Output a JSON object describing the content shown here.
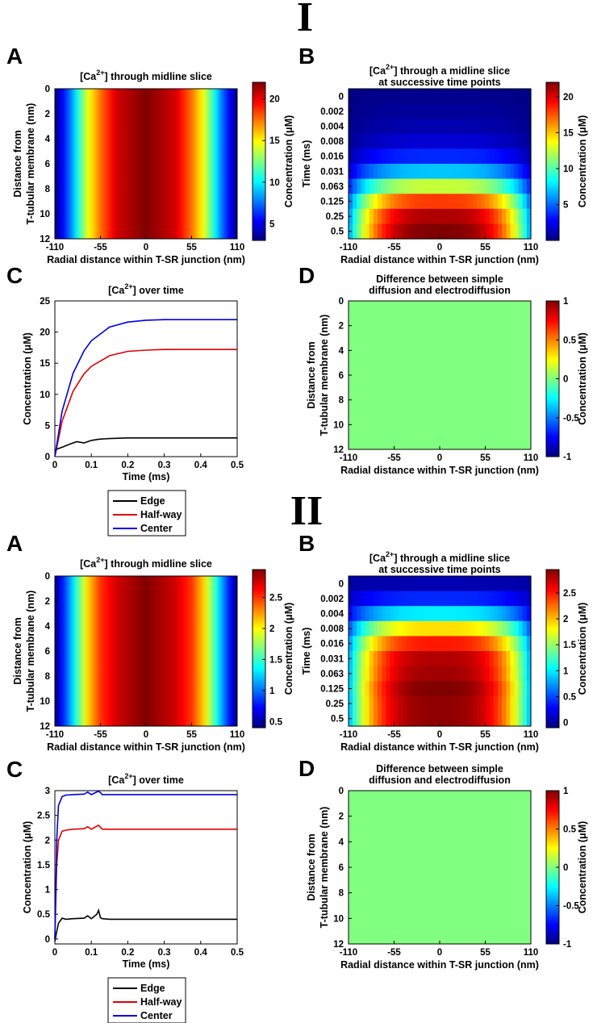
{
  "figure": {
    "sections": [
      {
        "numeral": "I",
        "panels": {
          "A": {
            "letter": "A",
            "title": "[Ca2+] through midline slice",
            "xlabel": "Radial distance within T-SR junction (nm)",
            "ylabel_line1": "Distance from",
            "ylabel_line2": "T-tubular membrane (nm)",
            "xticks": [
              "-110",
              "-55",
              "0",
              "55",
              "110"
            ],
            "yticks": [
              "0",
              "2",
              "4",
              "6",
              "8",
              "10",
              "12"
            ],
            "colorbar": {
              "label": "Concentration (μM)",
              "ticks": [
                "5",
                "10",
                "15",
                "20"
              ],
              "range": [
                3.0,
                22.0
              ]
            }
          },
          "B": {
            "letter": "B",
            "title_line1": "[Ca2+] through a midline slice",
            "title_line2": "at successive time points",
            "xlabel": "Radial distance within T-SR junction (nm)",
            "ylabel": "Time (ms)",
            "xticks": [
              "-110",
              "-55",
              "0",
              "55",
              "110"
            ],
            "yticks": [
              "0",
              "0.002",
              "0.004",
              "0.008",
              "0.016",
              "0.031",
              "0.063",
              "0.125",
              "0.25",
              "0.5"
            ],
            "colorbar": {
              "label": "Concentration (μM)",
              "ticks": [
                "5",
                "10",
                "15",
                "20"
              ],
              "range": [
                0.0,
                22.0
              ]
            }
          },
          "C": {
            "letter": "C",
            "title": "[Ca2+] over time",
            "xlabel": "Time (ms)",
            "ylabel": "Concentration (μM)",
            "xticks": [
              "0",
              "0.1",
              "0.2",
              "0.3",
              "0.4",
              "0.5"
            ],
            "yticks": [
              "0",
              "5",
              "10",
              "15",
              "20",
              "25"
            ],
            "legend": [
              "Edge",
              "Half-way",
              "Center"
            ]
          },
          "D": {
            "letter": "D",
            "title_line1": "Difference between simple",
            "title_line2": "diffusion and electrodiffusion",
            "xlabel": "Radial distance within T-SR junction (nm)",
            "ylabel_line1": "Distance from",
            "ylabel_line2": "T-tubular membrane (nm)",
            "xticks": [
              "-110",
              "-55",
              "0",
              "55",
              "110"
            ],
            "yticks": [
              "0",
              "2",
              "4",
              "6",
              "8",
              "10",
              "12"
            ],
            "colorbar": {
              "label": "Concentration (μM)",
              "ticks": [
                "1",
                "0.5",
                "0",
                "-0.5",
                "-1"
              ],
              "range": [
                -1,
                1
              ]
            }
          }
        }
      },
      {
        "numeral": "II",
        "panels": {
          "A": {
            "letter": "A",
            "title": "[Ca2+] through midline slice",
            "xlabel": "Radial distance within T-SR junction (nm)",
            "ylabel_line1": "Distance from",
            "ylabel_line2": "T-tubular membrane (nm)",
            "xticks": [
              "-110",
              "-55",
              "0",
              "55",
              "110"
            ],
            "yticks": [
              "0",
              "2",
              "4",
              "6",
              "8",
              "10",
              "12"
            ],
            "colorbar": {
              "label": "Concentration (μM)",
              "ticks": [
                "0.5",
                "1",
                "1.5",
                "2",
                "2.5"
              ],
              "range": [
                0.4,
                2.95
              ]
            }
          },
          "B": {
            "letter": "B",
            "title_line1": "[Ca2+] through a midline slice",
            "title_line2": "at successive time points",
            "xlabel": "Radial distance within T-SR junction (nm)",
            "ylabel": "Time (ms)",
            "xticks": [
              "-110",
              "-55",
              "0",
              "55",
              "110"
            ],
            "yticks": [
              "0",
              "0.002",
              "0.004",
              "0.008",
              "0.016",
              "0.031",
              "0.063",
              "0.125",
              "0.25",
              "0.5"
            ],
            "colorbar": {
              "label": "Concentration (μM)",
              "ticks": [
                "0",
                "0.5",
                "1",
                "1.5",
                "2",
                "2.5"
              ],
              "range": [
                -0.1,
                2.95
              ]
            }
          },
          "C": {
            "letter": "C",
            "title": "[Ca2+] over time",
            "xlabel": "Time (ms)",
            "ylabel": "Concentration (μM)",
            "xticks": [
              "0",
              "0.1",
              "0.2",
              "0.3",
              "0.4",
              "0.5"
            ],
            "yticks": [
              "0",
              "0.5",
              "1",
              "1.5",
              "2",
              "2.5",
              "3"
            ],
            "legend": [
              "Edge",
              "Half-way",
              "Center"
            ]
          },
          "D": {
            "letter": "D",
            "title_line1": "Difference between simple",
            "title_line2": "diffusion and electrodiffusion",
            "xlabel": "Radial distance within T-SR junction (nm)",
            "ylabel_line1": "Distance from",
            "ylabel_line2": "T-tubular membrane (nm)",
            "xticks": [
              "-110",
              "-55",
              "0",
              "55",
              "110"
            ],
            "yticks": [
              "0",
              "2",
              "4",
              "6",
              "8",
              "10",
              "12"
            ],
            "colorbar": {
              "label": "Concentration (μM)",
              "ticks": [
                "1",
                "0.5",
                "0",
                "-0.5",
                "-1"
              ],
              "range": [
                -1,
                1
              ]
            }
          }
        }
      }
    ]
  },
  "colors": {
    "edge": "#000000",
    "halfway": "#e00000",
    "center": "#0000e0",
    "zero_diff": "#80ff80"
  },
  "chart_data": [
    {
      "id": "I-A",
      "type": "heatmap",
      "title": "[Ca2+] through midline slice",
      "xlabel": "Radial distance within T-SR junction (nm)",
      "ylabel": "Distance from T-tubular membrane (nm)",
      "xlim": [
        -110,
        110
      ],
      "ylim": [
        0,
        12
      ],
      "profile_x": [
        -110,
        -90,
        -70,
        -55,
        -35,
        0,
        35,
        55,
        70,
        90,
        110
      ],
      "profile_values": [
        3.0,
        8.0,
        14.5,
        17.5,
        20.5,
        22.0,
        20.5,
        17.5,
        14.5,
        8.0,
        3.0
      ],
      "colorbar_range": [
        3.0,
        22.0
      ]
    },
    {
      "id": "I-B",
      "type": "heatmap",
      "title": "[Ca2+] through a midline slice at successive time points",
      "xlabel": "Radial distance within T-SR junction (nm)",
      "ylabel": "Time (ms)",
      "xlim": [
        -110,
        110
      ],
      "times": [
        0,
        0.002,
        0.004,
        0.008,
        0.016,
        0.031,
        0.063,
        0.125,
        0.25,
        0.5
      ],
      "center_values": [
        0.3,
        0.6,
        1.0,
        1.8,
        3.6,
        7.0,
        12.5,
        18.0,
        21.0,
        22.0
      ],
      "colorbar_range": [
        0.0,
        22.0
      ]
    },
    {
      "id": "I-C",
      "type": "line",
      "title": "[Ca2+] over time",
      "xlabel": "Time (ms)",
      "ylabel": "Concentration (μM)",
      "xlim": [
        0,
        0.5
      ],
      "ylim": [
        0,
        25
      ],
      "series": [
        {
          "name": "Edge",
          "x": [
            0,
            0.005,
            0.02,
            0.04,
            0.06,
            0.08,
            0.1,
            0.12,
            0.15,
            0.2,
            0.3,
            0.4,
            0.5
          ],
          "values": [
            0.5,
            1.2,
            1.5,
            2.0,
            2.4,
            2.2,
            2.6,
            2.8,
            2.9,
            3.0,
            3.0,
            3.0,
            3.0
          ]
        },
        {
          "name": "Half-way",
          "x": [
            0,
            0.02,
            0.05,
            0.08,
            0.1,
            0.15,
            0.2,
            0.25,
            0.3,
            0.4,
            0.5
          ],
          "values": [
            0,
            5.7,
            10.5,
            13.3,
            14.5,
            16.2,
            16.9,
            17.1,
            17.2,
            17.2,
            17.2
          ]
        },
        {
          "name": "Center",
          "x": [
            0,
            0.02,
            0.05,
            0.08,
            0.1,
            0.15,
            0.2,
            0.25,
            0.3,
            0.4,
            0.5
          ],
          "values": [
            0,
            7.3,
            13.4,
            17.0,
            18.6,
            20.8,
            21.6,
            21.9,
            22.0,
            22.0,
            22.0
          ]
        }
      ]
    },
    {
      "id": "I-D",
      "type": "heatmap",
      "title": "Difference between simple diffusion and electrodiffusion",
      "xlabel": "Radial distance within T-SR junction (nm)",
      "ylabel": "Distance from T-tubular membrane (nm)",
      "xlim": [
        -110,
        110
      ],
      "ylim": [
        0,
        12
      ],
      "value": 0,
      "colorbar_range": [
        -1,
        1
      ]
    },
    {
      "id": "II-A",
      "type": "heatmap",
      "title": "[Ca2+] through midline slice",
      "xlabel": "Radial distance within T-SR junction (nm)",
      "ylabel": "Distance from T-tubular membrane (nm)",
      "xlim": [
        -110,
        110
      ],
      "ylim": [
        0,
        12
      ],
      "profile_x": [
        -110,
        -90,
        -70,
        -55,
        -35,
        0,
        35,
        55,
        70,
        90,
        110
      ],
      "profile_values": [
        0.4,
        1.2,
        2.1,
        2.5,
        2.75,
        2.95,
        2.75,
        2.5,
        2.1,
        1.2,
        0.4
      ],
      "colorbar_range": [
        0.4,
        2.95
      ]
    },
    {
      "id": "II-B",
      "type": "heatmap",
      "title": "[Ca2+] through a midline slice at successive time points",
      "xlabel": "Radial distance within T-SR junction (nm)",
      "ylabel": "Time (ms)",
      "xlim": [
        -110,
        110
      ],
      "times": [
        0,
        0.002,
        0.004,
        0.008,
        0.016,
        0.031,
        0.063,
        0.125,
        0.25,
        0.5
      ],
      "center_values": [
        0.05,
        0.4,
        1.0,
        1.9,
        2.5,
        2.8,
        2.85,
        2.95,
        2.9,
        2.9
      ],
      "colorbar_range": [
        -0.1,
        2.95
      ]
    },
    {
      "id": "II-C",
      "type": "line",
      "title": "[Ca2+] over time",
      "xlabel": "Time (ms)",
      "ylabel": "Concentration (μM)",
      "xlim": [
        0,
        0.5
      ],
      "ylim": [
        -0.1,
        3
      ],
      "series": [
        {
          "name": "Edge",
          "x": [
            0,
            0.005,
            0.01,
            0.02,
            0.03,
            0.05,
            0.08,
            0.09,
            0.1,
            0.115,
            0.12,
            0.125,
            0.13,
            0.15,
            0.3,
            0.5
          ],
          "values": [
            -0.05,
            0.15,
            0.32,
            0.42,
            0.4,
            0.41,
            0.42,
            0.47,
            0.41,
            0.5,
            0.58,
            0.43,
            0.41,
            0.4,
            0.4,
            0.4
          ]
        },
        {
          "name": "Half-way",
          "x": [
            0,
            0.005,
            0.01,
            0.02,
            0.03,
            0.05,
            0.08,
            0.09,
            0.1,
            0.12,
            0.125,
            0.13,
            0.15,
            0.3,
            0.5
          ],
          "values": [
            0,
            1.5,
            2.0,
            2.18,
            2.2,
            2.22,
            2.23,
            2.27,
            2.22,
            2.3,
            2.26,
            2.22,
            2.22,
            2.22,
            2.22
          ]
        },
        {
          "name": "Center",
          "x": [
            0,
            0.005,
            0.01,
            0.02,
            0.03,
            0.05,
            0.08,
            0.09,
            0.1,
            0.12,
            0.125,
            0.13,
            0.15,
            0.3,
            0.5
          ],
          "values": [
            0,
            2.0,
            2.7,
            2.88,
            2.91,
            2.92,
            2.93,
            2.97,
            2.92,
            2.99,
            2.96,
            2.92,
            2.92,
            2.92,
            2.92
          ]
        }
      ]
    },
    {
      "id": "II-D",
      "type": "heatmap",
      "title": "Difference between simple diffusion and electrodiffusion",
      "xlabel": "Radial distance within T-SR junction (nm)",
      "ylabel": "Distance from T-tubular membrane (nm)",
      "xlim": [
        -110,
        110
      ],
      "ylim": [
        0,
        12
      ],
      "value": 0,
      "colorbar_range": [
        -1,
        1
      ]
    }
  ]
}
